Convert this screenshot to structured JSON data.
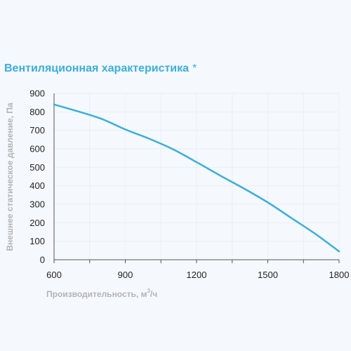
{
  "chart_data": {
    "type": "line",
    "title": "Вентиляционная характеристика",
    "title_marker": "*",
    "xlabel": "Производительность, м",
    "xlabel_sup": "3",
    "xlabel_suffix": "/ч",
    "ylabel": "Внешнее статическое давление, Па",
    "xlim": [
      600,
      1800
    ],
    "ylim": [
      0,
      900
    ],
    "x_ticks": [
      600,
      900,
      1200,
      1500,
      1800
    ],
    "y_ticks": [
      0,
      100,
      200,
      300,
      400,
      500,
      600,
      700,
      800,
      900
    ],
    "grid": true,
    "line_color": "#3aaee0",
    "series": [
      {
        "x": [
          600,
          700,
          800,
          900,
          1000,
          1100,
          1200,
          1300,
          1400,
          1500,
          1600,
          1700,
          1800
        ],
        "values": [
          840,
          803,
          762,
          705,
          655,
          598,
          528,
          455,
          385,
          310,
          225,
          140,
          45
        ]
      }
    ]
  }
}
